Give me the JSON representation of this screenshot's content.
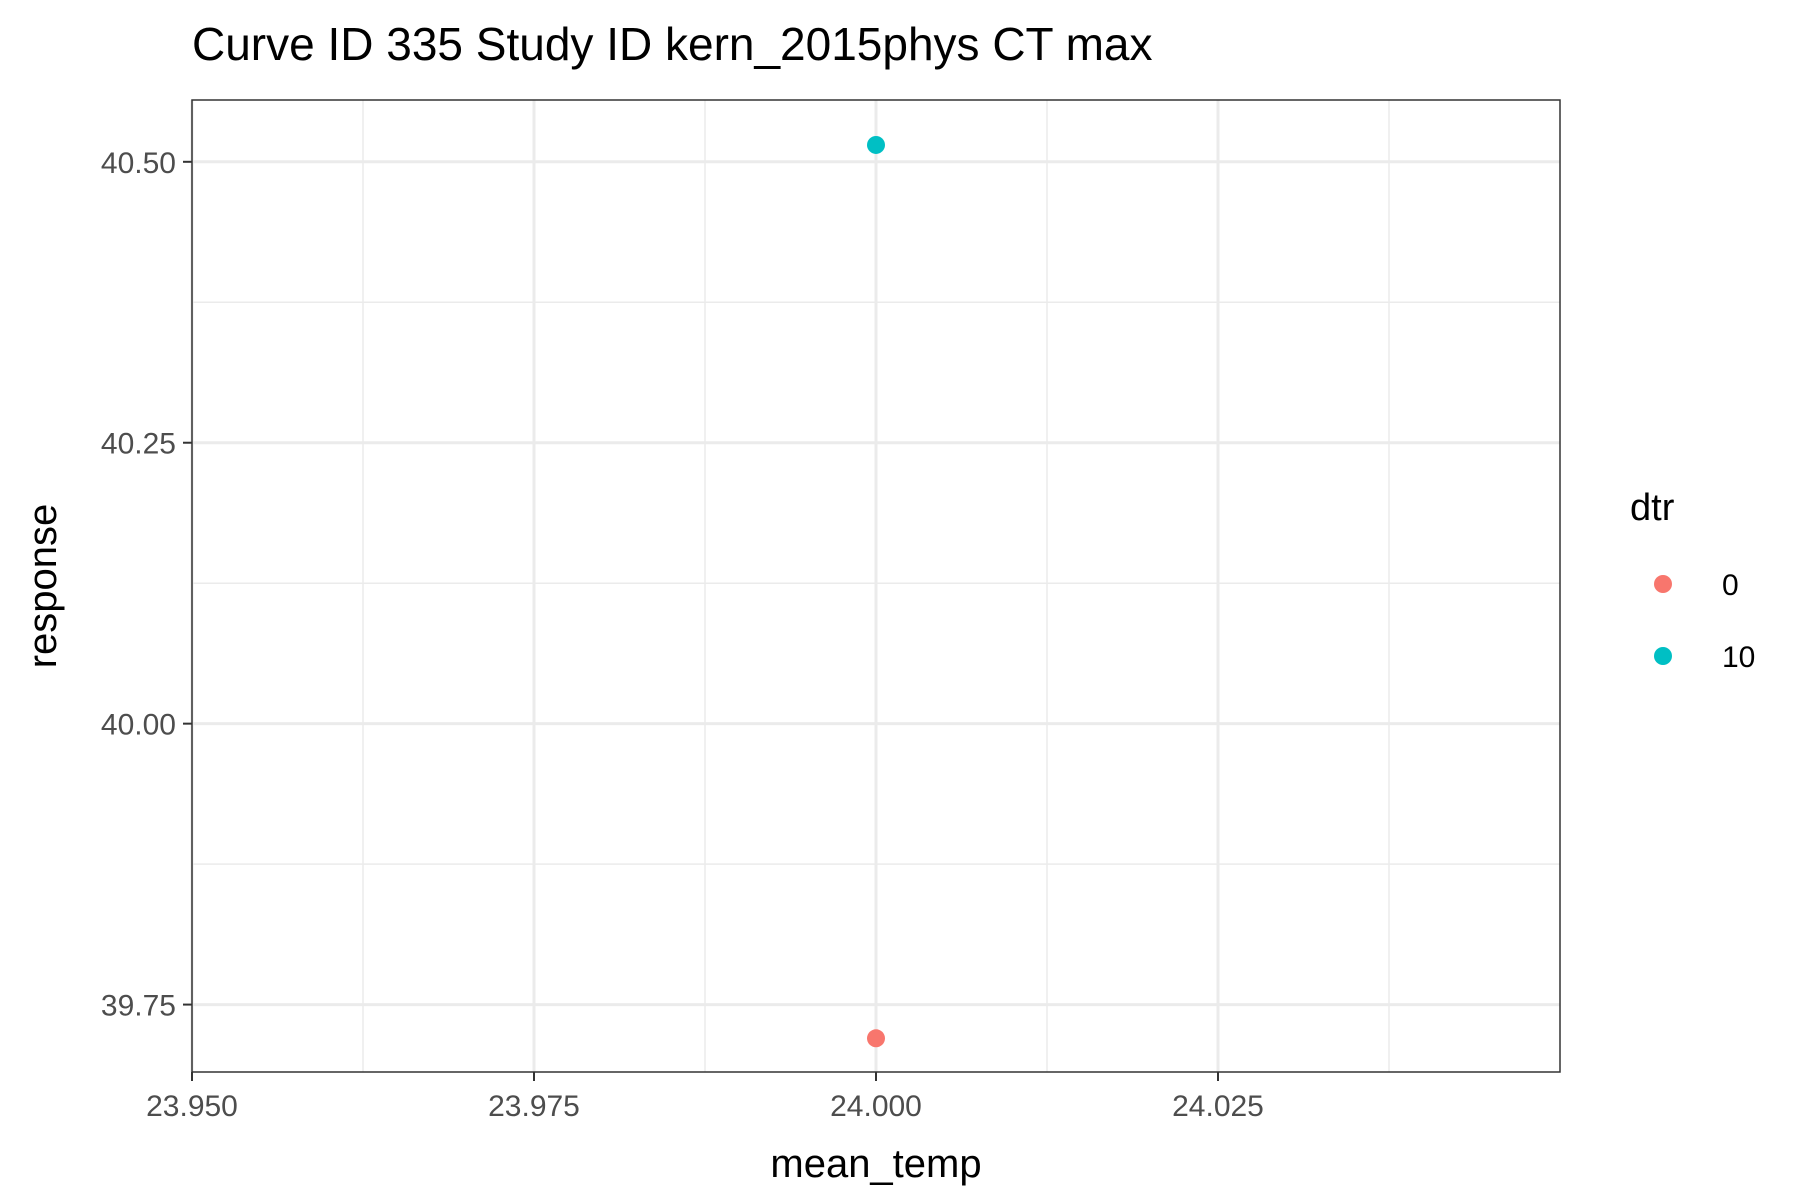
{
  "chart_data": {
    "type": "scatter",
    "title": "Curve ID 335 Study ID kern_2015phys CT max",
    "xlabel": "mean_temp",
    "ylabel": "response",
    "xlim": [
      23.95,
      24.05
    ],
    "ylim": [
      39.69,
      40.555
    ],
    "x_ticks": [
      23.95,
      23.975,
      24.0,
      24.025
    ],
    "x_tick_labels": [
      "23.950",
      "23.975",
      "24.000",
      "24.025"
    ],
    "y_ticks": [
      39.75,
      40.0,
      40.25,
      40.5
    ],
    "y_tick_labels": [
      "39.75",
      "40.00",
      "40.25",
      "40.50"
    ],
    "grid": true,
    "legend": {
      "title": "dtr",
      "placement": "right",
      "entries": [
        {
          "label": "0",
          "color": "#F8766D"
        },
        {
          "label": "10",
          "color": "#00BFC4"
        }
      ]
    },
    "points": [
      {
        "x": 24.0,
        "y": 39.72,
        "dtr": "0",
        "color": "#F8766D"
      },
      {
        "x": 24.0,
        "y": 40.515,
        "dtr": "10",
        "color": "#00BFC4"
      }
    ]
  }
}
